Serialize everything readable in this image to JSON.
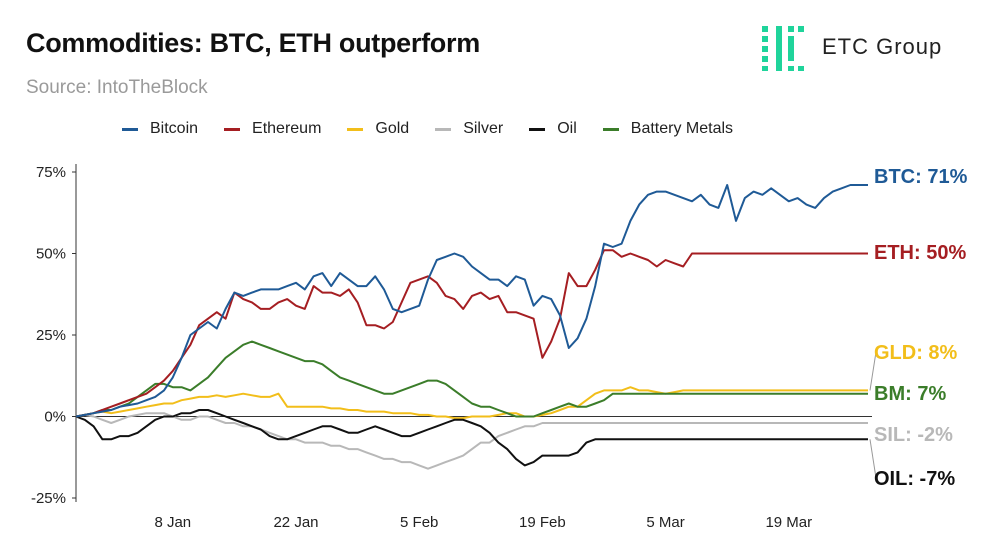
{
  "header": {
    "title": "Commodities: BTC, ETH outperform",
    "subtitle": "Source: IntoTheBlock"
  },
  "logo": {
    "text": "ETC Group",
    "color": "#1fd49b"
  },
  "chart_data": {
    "type": "line",
    "ylim": [
      -25,
      75
    ],
    "y_ticks": [
      75,
      50,
      25,
      0,
      -25
    ],
    "y_tick_labels": [
      "75%",
      "50%",
      "25%",
      "0%",
      "-25%"
    ],
    "x_tick_labels": [
      "8 Jan",
      "22 Jan",
      "5 Feb",
      "19 Feb",
      "5 Mar",
      "19 Mar"
    ],
    "x_tick_index": [
      11,
      25,
      39,
      53,
      67,
      81
    ],
    "n_points": 91,
    "grid": false,
    "legend": "top",
    "series": [
      {
        "name": "Bitcoin",
        "color": "#1f5a96",
        "end_label": "BTC: 71%",
        "values": [
          0,
          0.5,
          1,
          1.5,
          2,
          3,
          3.5,
          4,
          5,
          6,
          8,
          12,
          18,
          25,
          27,
          29,
          27,
          33,
          38,
          37,
          38,
          39,
          39,
          39,
          40,
          41,
          39,
          43,
          44,
          40,
          44,
          42,
          40,
          40,
          43,
          39,
          33,
          32,
          33,
          34,
          42,
          48,
          49,
          50,
          49,
          46,
          44,
          42,
          42,
          40,
          43,
          42,
          34,
          37,
          36,
          31,
          21,
          24,
          30,
          40,
          53,
          52,
          53,
          60,
          65,
          68,
          69,
          69,
          68,
          67,
          66,
          68,
          65,
          64,
          71,
          60,
          67,
          69,
          68,
          70,
          68,
          66,
          67,
          65,
          64,
          67,
          69,
          70,
          71,
          71,
          71
        ]
      },
      {
        "name": "Ethereum",
        "color": "#a51e22",
        "end_label": "ETH: 50%",
        "values": [
          0,
          0.5,
          1,
          2,
          3,
          4,
          5,
          6,
          7,
          9,
          11,
          14,
          18,
          22,
          28,
          30,
          32,
          30,
          38,
          36,
          35,
          33,
          33,
          35,
          36,
          34,
          33,
          40,
          38,
          38,
          37,
          39,
          35,
          28,
          28,
          27,
          29,
          35,
          41,
          42,
          43,
          41,
          37,
          36,
          33,
          37,
          38,
          36,
          37,
          32,
          32,
          31,
          30,
          18,
          23,
          30,
          44,
          40,
          40,
          45,
          51,
          51,
          49,
          50,
          49,
          48,
          46,
          48,
          47,
          46,
          50,
          50,
          50,
          50,
          50,
          50,
          50,
          50,
          50,
          50,
          50,
          50,
          50,
          50,
          50,
          50,
          50,
          50,
          50,
          50,
          50
        ]
      },
      {
        "name": "Gold",
        "color": "#f2be1a",
        "end_label": "GLD: 8%",
        "values": [
          0,
          0.5,
          1,
          1.5,
          1,
          1.5,
          2,
          2.5,
          3,
          3.5,
          4,
          4,
          5,
          5.5,
          6,
          6,
          6.5,
          6,
          6.5,
          7,
          6.5,
          6,
          6,
          7,
          3,
          3,
          3,
          3,
          3,
          2.5,
          2.5,
          2,
          2,
          1.5,
          1.5,
          1.5,
          1,
          1,
          1,
          0.5,
          0.5,
          0,
          0,
          -0.5,
          -0.5,
          0,
          0,
          0,
          0.5,
          1,
          1,
          0,
          0,
          0.5,
          1,
          2,
          3,
          3,
          5,
          7,
          8,
          8,
          8,
          9,
          8,
          8,
          7.5,
          7,
          7.5,
          8,
          8,
          8,
          8,
          8,
          8,
          8,
          8,
          8,
          8,
          8,
          8,
          8,
          8,
          8,
          8,
          8,
          8,
          8,
          8,
          8,
          8
        ]
      },
      {
        "name": "Silver",
        "color": "#b8b8b8",
        "end_label": "SIL: -2%",
        "values": [
          0,
          0.5,
          0,
          -1,
          -2,
          -1,
          0,
          0.5,
          1,
          1,
          1,
          0,
          -1,
          -1,
          0,
          0,
          -1,
          -2,
          -2,
          -3,
          -3,
          -4,
          -5,
          -6,
          -7,
          -7,
          -8,
          -8,
          -8,
          -9,
          -9,
          -10,
          -10,
          -11,
          -12,
          -13,
          -13,
          -14,
          -14,
          -15,
          -16,
          -15,
          -14,
          -13,
          -12,
          -10,
          -8,
          -8,
          -6,
          -5,
          -4,
          -3,
          -3,
          -2,
          -2,
          -2,
          -2,
          -2,
          -2,
          -2,
          -2,
          -2,
          -2,
          -2,
          -2,
          -2,
          -2,
          -2,
          -2,
          -2,
          -2,
          -2,
          -2,
          -2,
          -2,
          -2,
          -2,
          -2,
          -2,
          -2,
          -2,
          -2,
          -2,
          -2,
          -2,
          -2,
          -2,
          -2,
          -2,
          -2,
          -2
        ]
      },
      {
        "name": "Oil",
        "color": "#111111",
        "end_label": "OIL: -7%",
        "values": [
          0,
          -1,
          -3,
          -7,
          -7,
          -6,
          -6,
          -5,
          -3,
          -1,
          0,
          0,
          1,
          1,
          2,
          2,
          1,
          0,
          -1,
          -2,
          -3,
          -4,
          -6,
          -7,
          -7,
          -6,
          -5,
          -4,
          -3,
          -3,
          -4,
          -5,
          -5,
          -4,
          -3,
          -4,
          -5,
          -6,
          -6,
          -5,
          -4,
          -3,
          -2,
          -1,
          -1,
          -2,
          -3,
          -5,
          -8,
          -10,
          -13,
          -15,
          -14,
          -12,
          -12,
          -12,
          -12,
          -11,
          -8,
          -7,
          -7,
          -7,
          -7,
          -7,
          -7,
          -7,
          -7,
          -7,
          -7,
          -7,
          -7,
          -7,
          -7,
          -7,
          -7,
          -7,
          -7,
          -7,
          -7,
          -7,
          -7,
          -7,
          -7,
          -7,
          -7,
          -7,
          -7,
          -7,
          -7,
          -7,
          -7
        ]
      },
      {
        "name": "Battery Metals",
        "color": "#3b7d2a",
        "end_label": "BM: 7%",
        "values": [
          0,
          0.5,
          1,
          2,
          2,
          3,
          4,
          6,
          8,
          10,
          10,
          9,
          9,
          8,
          10,
          12,
          15,
          18,
          20,
          22,
          23,
          22,
          21,
          20,
          19,
          18,
          17,
          17,
          16,
          14,
          12,
          11,
          10,
          9,
          8,
          7,
          7,
          8,
          9,
          10,
          11,
          11,
          10,
          8,
          6,
          4,
          3,
          3,
          2,
          1,
          0,
          0,
          0,
          1,
          2,
          3,
          4,
          3,
          3,
          4,
          5,
          7,
          7,
          7,
          7,
          7,
          7,
          7,
          7,
          7,
          7,
          7,
          7,
          7,
          7,
          7,
          7,
          7,
          7,
          7,
          7,
          7,
          7,
          7,
          7,
          7,
          7,
          7,
          7,
          7,
          7
        ]
      }
    ]
  }
}
